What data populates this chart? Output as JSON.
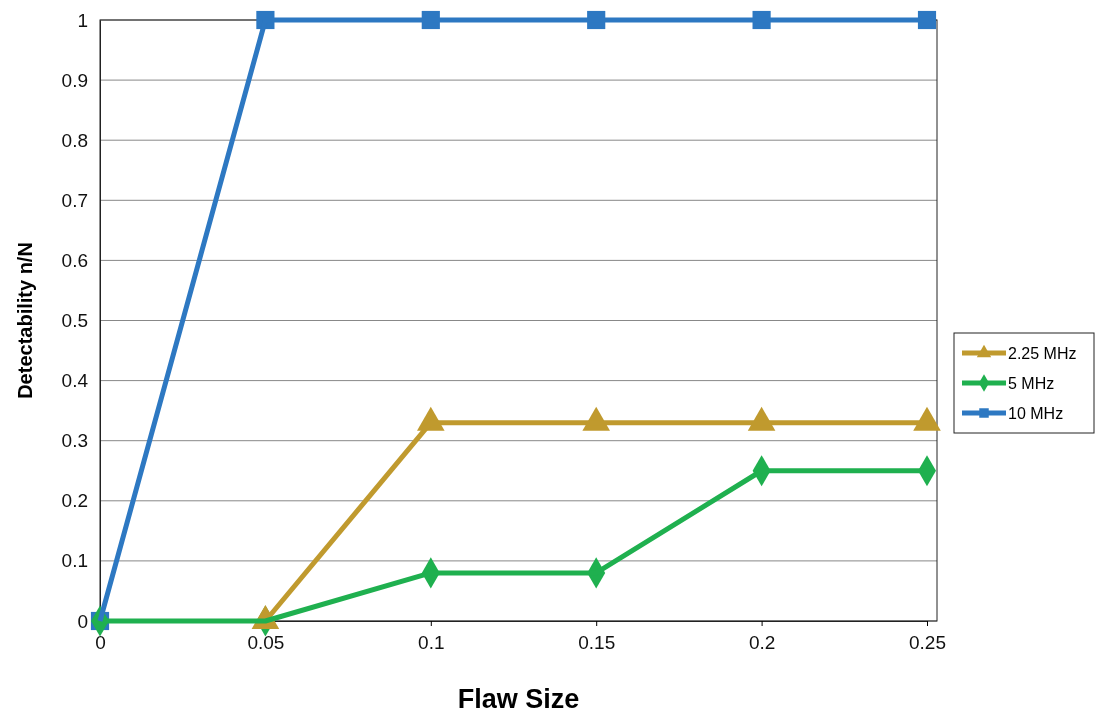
{
  "chart_data": {
    "type": "line",
    "xlabel": "Flaw Size",
    "ylabel": "Detectability n/N",
    "x": [
      0,
      0.05,
      0.1,
      0.15,
      0.2,
      0.25
    ],
    "series": [
      {
        "name": "2.25 MHz",
        "color": "#c09a2e",
        "marker": "triangle",
        "values": [
          null,
          0,
          0.33,
          0.33,
          0.33,
          0.33
        ]
      },
      {
        "name": "5 MHz",
        "color": "#1fb04f",
        "marker": "diamond",
        "values": [
          0,
          0,
          0.08,
          0.08,
          0.25,
          0.25
        ]
      },
      {
        "name": "10 MHz",
        "color": "#2d78c2",
        "marker": "square",
        "values": [
          0,
          1,
          1,
          1,
          1,
          1
        ]
      }
    ],
    "xlim": [
      0,
      0.25
    ],
    "xticks": [
      0,
      0.05,
      0.1,
      0.15,
      0.2,
      0.25
    ],
    "ylim": [
      0,
      1
    ],
    "yticks": [
      0,
      0.1,
      0.2,
      0.3,
      0.4,
      0.5,
      0.6,
      0.7,
      0.8,
      0.9,
      1
    ],
    "grid": "y",
    "legend": "right",
    "line_style": "solid"
  }
}
